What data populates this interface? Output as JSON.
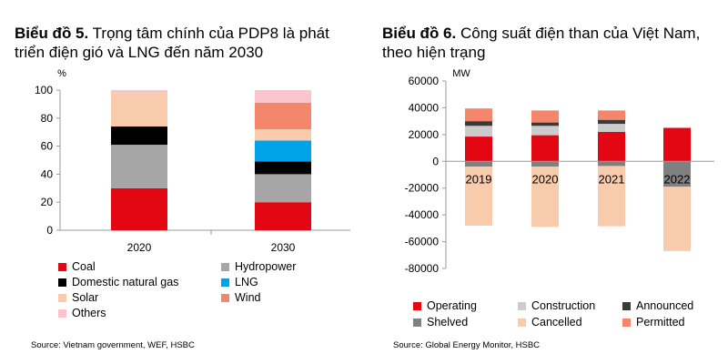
{
  "chart_data": [
    {
      "type": "bar",
      "stacked": true,
      "title_bold": "Biểu đồ 5.",
      "title": "Trọng tâm chính của PDP8 là phát triển điện gió và LNG đến năm 2030",
      "ylabel": "%",
      "categories": [
        "2020",
        "2030"
      ],
      "ylim": [
        0,
        100
      ],
      "yticks": [
        0,
        20,
        40,
        60,
        80,
        100
      ],
      "series": [
        {
          "name": "Coal",
          "color": "#e30613",
          "values": [
            30,
            20
          ]
        },
        {
          "name": "Hydropower",
          "color": "#a6a6a6",
          "values": [
            31,
            20
          ]
        },
        {
          "name": "Domestic natural gas",
          "color": "#000000",
          "values": [
            13,
            9
          ]
        },
        {
          "name": "LNG",
          "color": "#00a3e8",
          "values": [
            0,
            15
          ]
        },
        {
          "name": "Solar",
          "color": "#f8cbad",
          "values": [
            24,
            8
          ]
        },
        {
          "name": "Wind",
          "color": "#f4866b",
          "values": [
            0,
            19
          ]
        },
        {
          "name": "Others",
          "color": "#fbc3cb",
          "values": [
            2,
            9
          ]
        }
      ],
      "legend_placement": "bottom",
      "source": "Source: Vietnam government, WEF, HSBC"
    },
    {
      "type": "bar",
      "stacked": true,
      "title_bold": "Biểu đồ 6.",
      "title": "Công suất điện than của Việt Nam, theo hiện trạng",
      "ylabel": "MW",
      "categories": [
        "2019",
        "2020",
        "2021",
        "2022"
      ],
      "ylim": [
        -80000,
        60000
      ],
      "yticks": [
        -80000,
        -60000,
        -40000,
        -20000,
        0,
        20000,
        40000,
        60000
      ],
      "series": [
        {
          "name": "Operating",
          "color": "#e30613",
          "values": [
            18500,
            19500,
            22000,
            25000
          ]
        },
        {
          "name": "Construction",
          "color": "#cccccc",
          "values": [
            8000,
            7000,
            6000,
            0
          ]
        },
        {
          "name": "Announced",
          "color": "#3a3a3a",
          "values": [
            3500,
            2500,
            3000,
            0
          ]
        },
        {
          "name": "Permitted",
          "color": "#f4866b",
          "values": [
            9500,
            9000,
            7000,
            0
          ]
        },
        {
          "name": "Shelved",
          "color": "#808080",
          "values": [
            -4000,
            -4000,
            -3500,
            -19000
          ]
        },
        {
          "name": "Cancelled",
          "color": "#f8cbad",
          "values": [
            -44000,
            -45000,
            -45000,
            -48000
          ]
        }
      ],
      "legend_order": [
        "Operating",
        "Construction",
        "Announced",
        "Shelved",
        "Cancelled",
        "Permitted"
      ],
      "legend_placement": "bottom",
      "source": "Source: Global Energy Monitor, HSBC"
    }
  ]
}
